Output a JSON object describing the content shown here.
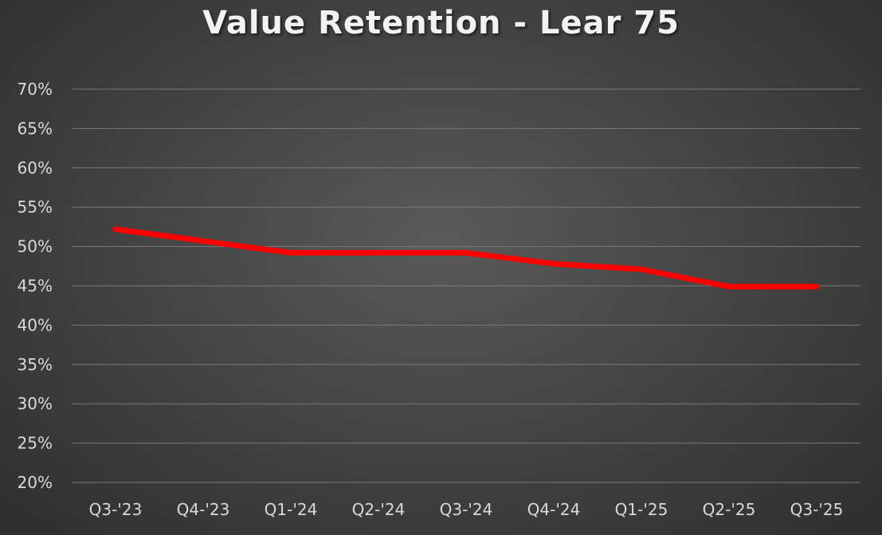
{
  "chart_data": {
    "type": "line",
    "title": "Value Retention - Lear 75",
    "xlabel": "",
    "ylabel": "",
    "categories": [
      "Q3-'23",
      "Q4-'23",
      "Q1-'24",
      "Q2-'24",
      "Q3-'24",
      "Q4-'24",
      "Q1-'25",
      "Q2-'25",
      "Q3-'25"
    ],
    "series": [
      {
        "values": [
          52.2,
          50.7,
          49.2,
          49.2,
          49.2,
          47.8,
          47.1,
          44.9,
          44.9
        ],
        "color": "#ff0000"
      }
    ],
    "ylim": [
      20,
      70
    ],
    "y_ticks": [
      20,
      25,
      30,
      35,
      40,
      45,
      50,
      55,
      60,
      65,
      70
    ],
    "y_tick_format": "percent",
    "grid": true,
    "legend": "none",
    "colors": {
      "line": "#ff0000",
      "grid": "#7a7a7a",
      "text": "#d9d9d9",
      "title": "#f2f2f2"
    }
  }
}
